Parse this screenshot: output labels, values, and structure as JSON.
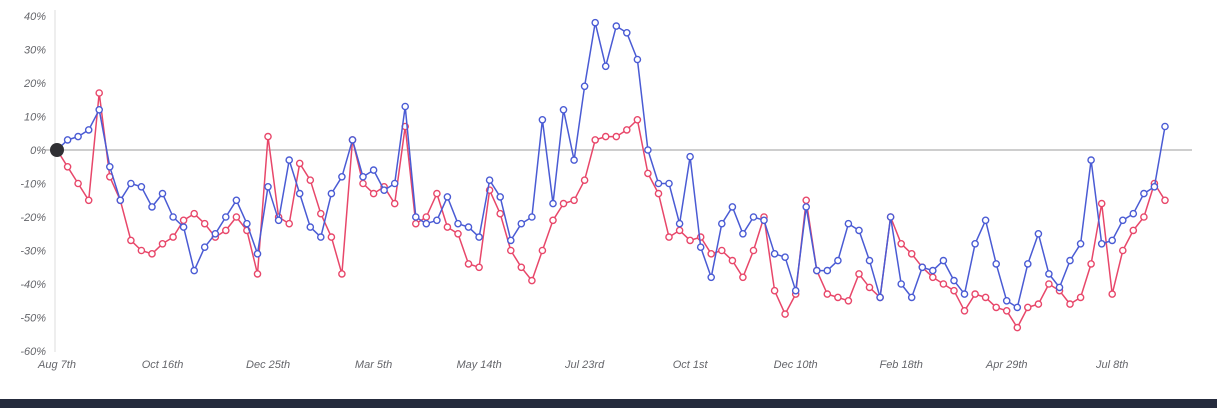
{
  "chart_data": {
    "type": "line",
    "title": "",
    "unit": "%",
    "legend": "none",
    "grid": "zero-line-only",
    "ylim": [
      -60,
      40
    ],
    "y_ticks": [
      40,
      30,
      20,
      10,
      0,
      -10,
      -20,
      -30,
      -40,
      -50,
      -60
    ],
    "y_tick_labels": [
      "40%",
      "30%",
      "20%",
      "10%",
      "0%",
      "-10%",
      "-20%",
      "-30%",
      "-40%",
      "-50%",
      "-60%"
    ],
    "x_tick_weeks": [
      0,
      10,
      20,
      30,
      40,
      50,
      60,
      70,
      80,
      90,
      100
    ],
    "x_tick_labels": [
      "Aug 7th",
      "Oct 16th",
      "Dec 25th",
      "Mar 5th",
      "May 14th",
      "Jul 23rd",
      "Oct 1st",
      "Dec 10th",
      "Feb 18th",
      "Apr 29th",
      "Jul 8th"
    ],
    "series": [
      {
        "name": "red-series",
        "color": "#e8476a",
        "values": [
          0,
          -5,
          -10,
          -15,
          17,
          -8,
          -15,
          -27,
          -30,
          -31,
          -28,
          -26,
          -21,
          -19,
          -22,
          -26,
          -24,
          -20,
          -24,
          -37,
          4,
          -20,
          -22,
          -4,
          -9,
          -19,
          -26,
          -37,
          3,
          -10,
          -13,
          -11,
          -16,
          7,
          -22,
          -20,
          -13,
          -23,
          -25,
          -34,
          -35,
          -12,
          -19,
          -30,
          -35,
          -39,
          -30,
          -21,
          -16,
          -15,
          -9,
          3,
          4,
          4,
          6,
          9,
          -7,
          -13,
          -26,
          -24,
          -27,
          -26,
          -31,
          -30,
          -33,
          -38,
          -30,
          -20,
          -42,
          -49,
          -43,
          -15,
          -36,
          -43,
          -44,
          -45,
          -37,
          -41,
          -44,
          -20,
          -28,
          -31,
          -35,
          -38,
          -40,
          -42,
          -48,
          -43,
          -44,
          -47,
          -48,
          -53,
          -47,
          -46,
          -40,
          -42,
          -46,
          -44,
          -34,
          -16,
          -43,
          -30,
          -24,
          -20,
          -10,
          -15
        ]
      },
      {
        "name": "blue-series",
        "color": "#4a5bd4",
        "values": [
          0,
          3,
          4,
          6,
          12,
          -5,
          -15,
          -10,
          -11,
          -17,
          -13,
          -20,
          -23,
          -36,
          -29,
          -25,
          -20,
          -15,
          -22,
          -31,
          -11,
          -21,
          -3,
          -13,
          -23,
          -26,
          -13,
          -8,
          3,
          -8,
          -6,
          -12,
          -10,
          13,
          -20,
          -22,
          -21,
          -14,
          -22,
          -23,
          -26,
          -9,
          -14,
          -27,
          -22,
          -20,
          9,
          -16,
          12,
          -3,
          19,
          38,
          25,
          37,
          35,
          27,
          0,
          -10,
          -10,
          -22,
          -2,
          -29,
          -38,
          -22,
          -17,
          -25,
          -20,
          -21,
          -31,
          -32,
          -42,
          -17,
          -36,
          -36,
          -33,
          -22,
          -24,
          -33,
          -44,
          -20,
          -40,
          -44,
          -35,
          -36,
          -33,
          -39,
          -43,
          -28,
          -21,
          -34,
          -45,
          -47,
          -34,
          -25,
          -37,
          -41,
          -33,
          -28,
          -3,
          -28,
          -27,
          -21,
          -19,
          -13,
          -11,
          7
        ]
      }
    ],
    "start_marker": {
      "index": 0,
      "value": 0,
      "color": "#2f2f33"
    },
    "axis_text_color": "#65666b",
    "zero_line_color": "#9e9e9e",
    "axis_line_color": "#dcdcdc"
  },
  "ui": {
    "bottom_bar_color": "#252b3d"
  }
}
